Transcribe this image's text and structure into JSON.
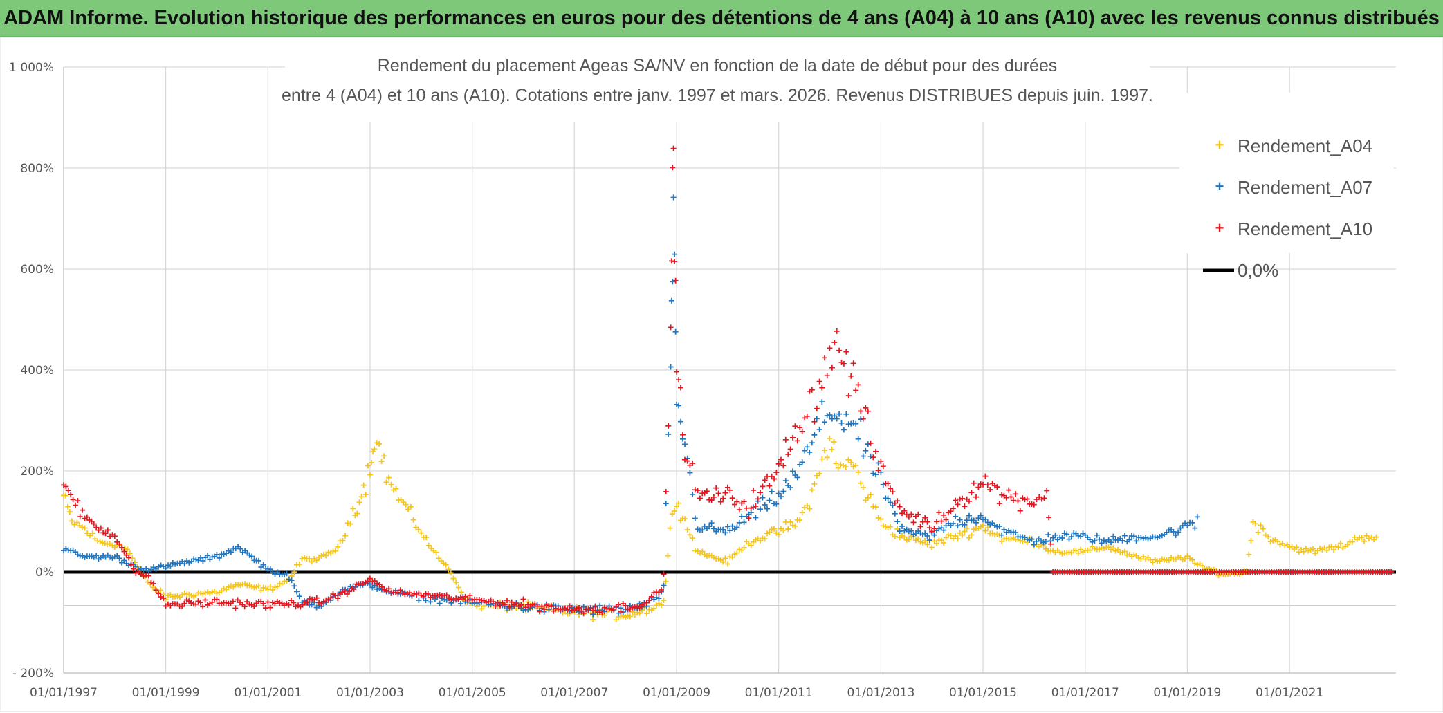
{
  "banner": {
    "text": "ADAM Informe. Evolution historique des performances en euros pour des détentions de 4 ans (A04) à 10 ans (A10) avec les revenus connus distribués"
  },
  "chart_data": {
    "type": "scatter",
    "title_lines": [
      "Rendement du placement Ageas SA/NV en fonction de la date de début pour des durées",
      "entre 4 (A04) et 10 ans (A10). Cotations entre janv. 1997 et mars. 2026. Revenus DISTRIBUES depuis juin. 1997."
    ],
    "xlabel": "",
    "ylabel": "",
    "x_range": [
      "1997-01-01",
      "2023-02-01"
    ],
    "ylim": [
      -200,
      1000
    ],
    "y_ticks": [
      -200,
      0,
      200,
      400,
      600,
      800,
      1000
    ],
    "y_tick_labels": [
      "- 200%",
      "0%",
      "200%",
      "400%",
      "600%",
      "800%",
      "1 000%"
    ],
    "x_ticks": [
      "1997-01-01",
      "1999-01-01",
      "2001-01-01",
      "2003-01-01",
      "2005-01-01",
      "2007-01-01",
      "2009-01-01",
      "2011-01-01",
      "2013-01-01",
      "2015-01-01",
      "2017-01-01",
      "2019-01-01",
      "2021-01-01"
    ],
    "x_tick_labels": [
      "01/01/1997",
      "01/01/1999",
      "01/01/2001",
      "01/01/2003",
      "01/01/2005",
      "01/01/2007",
      "01/01/2009",
      "01/01/2011",
      "01/01/2013",
      "01/01/2015",
      "01/01/2017",
      "01/01/2019",
      "01/01/2021"
    ],
    "grid": true,
    "extra_gridline_y": -67,
    "legend_position": "top-right",
    "marker": "+",
    "series": [
      {
        "name": "Rendement_A04",
        "color": "#f5c518",
        "points": [
          [
            "1997-01-01",
            150
          ],
          [
            "1997-03-01",
            100
          ],
          [
            "1997-06-01",
            85
          ],
          [
            "1997-09-01",
            60
          ],
          [
            "1998-01-01",
            55
          ],
          [
            "1998-04-01",
            45
          ],
          [
            "1998-07-01",
            0
          ],
          [
            "1998-10-01",
            -30
          ],
          [
            "1999-01-01",
            -50
          ],
          [
            "1999-06-01",
            -45
          ],
          [
            "2000-01-01",
            -40
          ],
          [
            "2000-06-01",
            -25
          ],
          [
            "2001-01-01",
            -35
          ],
          [
            "2001-06-01",
            -15
          ],
          [
            "2001-09-01",
            25
          ],
          [
            "2002-01-01",
            25
          ],
          [
            "2002-06-01",
            50
          ],
          [
            "2002-09-01",
            120
          ],
          [
            "2002-11-01",
            150
          ],
          [
            "2003-01-01",
            210
          ],
          [
            "2003-02-01",
            270
          ],
          [
            "2003-06-01",
            170
          ],
          [
            "2003-10-01",
            120
          ],
          [
            "2004-01-01",
            80
          ],
          [
            "2004-04-01",
            40
          ],
          [
            "2004-08-01",
            0
          ],
          [
            "2004-11-01",
            -50
          ],
          [
            "2005-01-01",
            -65
          ],
          [
            "2006-01-01",
            -70
          ],
          [
            "2007-01-01",
            -80
          ],
          [
            "2008-01-01",
            -85
          ],
          [
            "2008-06-01",
            -75
          ],
          [
            "2008-10-01",
            -60
          ],
          [
            "2008-11-15",
            80
          ],
          [
            "2009-01-01",
            150
          ],
          [
            "2009-03-01",
            100
          ],
          [
            "2009-06-01",
            40
          ],
          [
            "2010-01-01",
            20
          ],
          [
            "2010-06-01",
            60
          ],
          [
            "2011-01-01",
            80
          ],
          [
            "2011-06-01",
            100
          ],
          [
            "2011-10-01",
            180
          ],
          [
            "2012-01-01",
            270
          ],
          [
            "2012-03-01",
            200
          ],
          [
            "2012-06-01",
            220
          ],
          [
            "2012-10-01",
            150
          ],
          [
            "2013-01-01",
            100
          ],
          [
            "2013-06-01",
            70
          ],
          [
            "2014-01-01",
            55
          ],
          [
            "2014-06-01",
            70
          ],
          [
            "2015-01-01",
            90
          ],
          [
            "2015-06-01",
            65
          ],
          [
            "2016-01-01",
            60
          ],
          [
            "2016-06-01",
            40
          ],
          [
            "2017-01-01",
            40
          ],
          [
            "2017-06-01",
            50
          ],
          [
            "2018-01-01",
            30
          ],
          [
            "2018-06-01",
            20
          ],
          [
            "2019-01-01",
            30
          ],
          [
            "2019-04-01",
            10
          ],
          [
            "2019-10-01",
            -5
          ],
          [
            "2020-03-01",
            0
          ],
          [
            "2020-04-15",
            100
          ],
          [
            "2020-08-01",
            70
          ],
          [
            "2021-01-01",
            50
          ],
          [
            "2021-06-01",
            40
          ],
          [
            "2022-01-01",
            50
          ],
          [
            "2022-06-01",
            70
          ],
          [
            "2022-10-01",
            70
          ]
        ]
      },
      {
        "name": "Rendement_A07",
        "color": "#1f77c4",
        "points": [
          [
            "1997-01-01",
            45
          ],
          [
            "1997-06-01",
            30
          ],
          [
            "1998-01-01",
            30
          ],
          [
            "1998-06-01",
            10
          ],
          [
            "1998-09-01",
            5
          ],
          [
            "1999-01-01",
            10
          ],
          [
            "1999-06-01",
            20
          ],
          [
            "2000-01-01",
            30
          ],
          [
            "2000-06-01",
            50
          ],
          [
            "2001-01-01",
            5
          ],
          [
            "2001-06-01",
            -10
          ],
          [
            "2001-09-01",
            -60
          ],
          [
            "2002-01-01",
            -65
          ],
          [
            "2002-06-01",
            -40
          ],
          [
            "2002-09-01",
            -30
          ],
          [
            "2003-01-01",
            -25
          ],
          [
            "2003-06-01",
            -40
          ],
          [
            "2004-01-01",
            -50
          ],
          [
            "2005-01-01",
            -60
          ],
          [
            "2006-01-01",
            -70
          ],
          [
            "2007-01-01",
            -75
          ],
          [
            "2008-01-01",
            -75
          ],
          [
            "2008-06-01",
            -65
          ],
          [
            "2008-10-01",
            -40
          ],
          [
            "2008-11-20",
            400
          ],
          [
            "2008-12-10",
            700
          ],
          [
            "2009-01-01",
            350
          ],
          [
            "2009-03-01",
            250
          ],
          [
            "2009-06-01",
            90
          ],
          [
            "2010-01-01",
            80
          ],
          [
            "2010-06-01",
            110
          ],
          [
            "2011-01-01",
            150
          ],
          [
            "2011-06-01",
            200
          ],
          [
            "2011-10-01",
            280
          ],
          [
            "2012-01-01",
            320
          ],
          [
            "2012-06-01",
            300
          ],
          [
            "2012-10-01",
            230
          ],
          [
            "2013-01-01",
            180
          ],
          [
            "2013-06-01",
            80
          ],
          [
            "2014-01-01",
            70
          ],
          [
            "2014-06-01",
            100
          ],
          [
            "2015-01-01",
            110
          ],
          [
            "2015-06-01",
            80
          ],
          [
            "2016-01-01",
            60
          ],
          [
            "2016-06-01",
            70
          ],
          [
            "2017-01-01",
            70
          ],
          [
            "2017-06-01",
            60
          ],
          [
            "2018-01-01",
            70
          ],
          [
            "2018-06-01",
            70
          ],
          [
            "2019-01-01",
            90
          ],
          [
            "2019-04-01",
            100
          ]
        ]
      },
      {
        "name": "Rendement_A10",
        "color": "#e8151e",
        "points": [
          [
            "1997-01-01",
            175
          ],
          [
            "1997-06-01",
            110
          ],
          [
            "1998-01-01",
            70
          ],
          [
            "1998-06-01",
            0
          ],
          [
            "1998-09-01",
            -10
          ],
          [
            "1999-01-01",
            -65
          ],
          [
            "2000-01-01",
            -60
          ],
          [
            "2001-01-01",
            -65
          ],
          [
            "2002-01-01",
            -60
          ],
          [
            "2002-06-01",
            -45
          ],
          [
            "2003-01-01",
            -15
          ],
          [
            "2003-06-01",
            -40
          ],
          [
            "2004-01-01",
            -45
          ],
          [
            "2005-01-01",
            -55
          ],
          [
            "2006-01-01",
            -65
          ],
          [
            "2007-01-01",
            -75
          ],
          [
            "2008-01-01",
            -70
          ],
          [
            "2008-06-01",
            -60
          ],
          [
            "2008-10-01",
            -30
          ],
          [
            "2008-11-20",
            500
          ],
          [
            "2008-12-10",
            845
          ],
          [
            "2009-01-01",
            400
          ],
          [
            "2009-03-01",
            250
          ],
          [
            "2009-06-01",
            150
          ],
          [
            "2010-01-01",
            150
          ],
          [
            "2010-06-01",
            130
          ],
          [
            "2011-01-01",
            200
          ],
          [
            "2011-06-01",
            300
          ],
          [
            "2011-10-01",
            350
          ],
          [
            "2012-01-01",
            450
          ],
          [
            "2012-06-01",
            400
          ],
          [
            "2012-10-01",
            280
          ],
          [
            "2013-01-01",
            200
          ],
          [
            "2013-06-01",
            120
          ],
          [
            "2014-01-01",
            90
          ],
          [
            "2014-06-01",
            130
          ],
          [
            "2015-01-01",
            180
          ],
          [
            "2015-06-01",
            150
          ],
          [
            "2016-01-01",
            140
          ],
          [
            "2016-04-01",
            160
          ],
          [
            "2016-05-15",
            0
          ],
          [
            "2018-01-01",
            0
          ],
          [
            "2020-01-01",
            0
          ],
          [
            "2022-01-01",
            0
          ],
          [
            "2023-01-15",
            0
          ]
        ]
      },
      {
        "name": "0,0%",
        "color": "#000000",
        "type": "line",
        "points": [
          [
            "1997-01-01",
            0
          ],
          [
            "2023-02-01",
            0
          ]
        ]
      }
    ]
  }
}
